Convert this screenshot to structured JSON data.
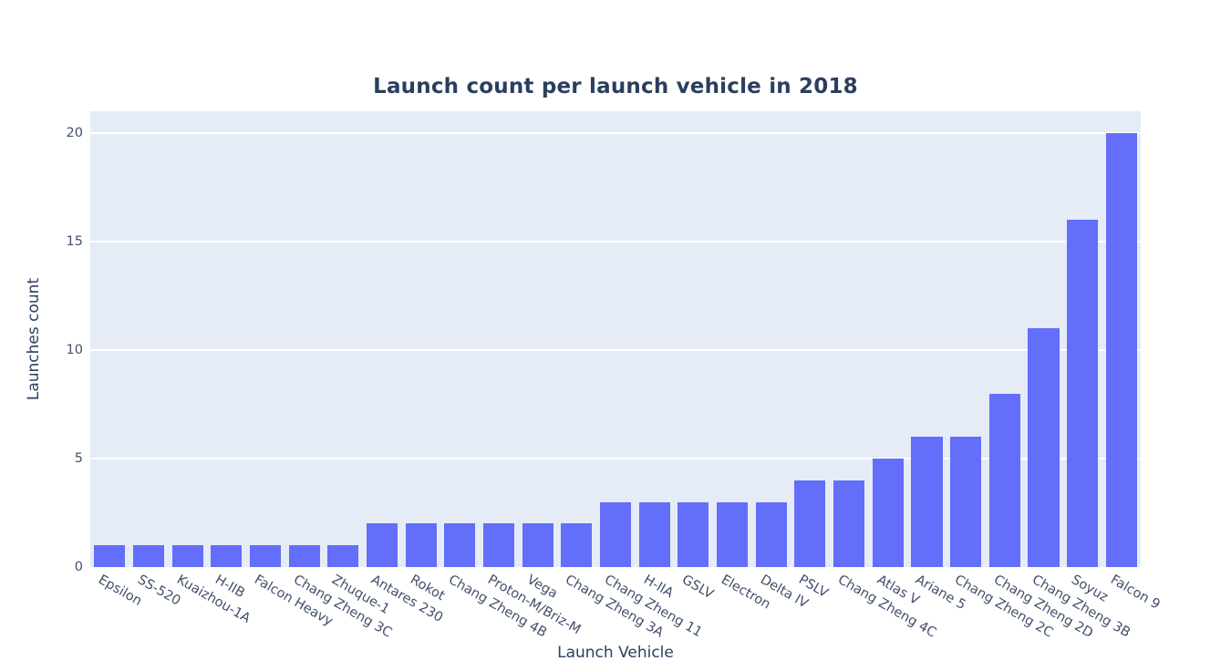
{
  "chart_data": {
    "type": "bar",
    "title": "Launch count per launch vehicle in 2018",
    "xlabel": "Launch Vehicle",
    "ylabel": "Launches count",
    "categories": [
      "Epsilon",
      "SS-520",
      "Kuaizhou-1A",
      "H-IIB",
      "Falcon Heavy",
      "Chang Zheng 3C",
      "Zhuque-1",
      "Antares 230",
      "Rokot",
      "Chang Zheng 4B",
      "Proton-M/Briz-M",
      "Vega",
      "Chang Zheng 3A",
      "Chang Zheng 11",
      "H-IIA",
      "GSLV",
      "Electron",
      "Delta IV",
      "PSLV",
      "Chang Zheng 4C",
      "Atlas V",
      "Ariane 5",
      "Chang Zheng 2C",
      "Chang Zheng 2D",
      "Chang Zheng 3B",
      "Soyuz",
      "Falcon 9"
    ],
    "values": [
      1,
      1,
      1,
      1,
      1,
      1,
      1,
      2,
      2,
      2,
      2,
      2,
      2,
      3,
      3,
      3,
      3,
      3,
      4,
      4,
      5,
      6,
      6,
      8,
      11,
      16,
      20
    ],
    "yticks": [
      0,
      5,
      10,
      15,
      20
    ],
    "ylim": [
      0,
      21
    ],
    "xtick_angle_deg": 30,
    "grid": true,
    "legend": "none",
    "colors": {
      "bar": "#636EFA",
      "bar_edge": "#E5ECF6",
      "plot_bg": "#E5ECF6",
      "grid": "#FFFFFF",
      "text": "#2a3f5f",
      "tick_text": "#42506b",
      "paper_bg": "#FFFFFF"
    }
  }
}
